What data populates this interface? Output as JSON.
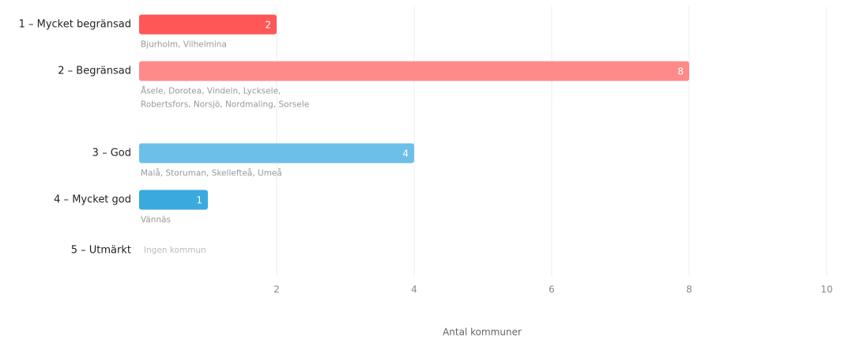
{
  "chart_data": {
    "type": "barh",
    "categories": [
      "1 – Mycket begränsad",
      "2 – Begränsad",
      "3 – God",
      "4 – Mycket god",
      "5 – Utmärkt"
    ],
    "values": [
      2,
      8,
      4,
      1,
      0
    ],
    "colors": [
      "#ff5757",
      "#ff8a8a",
      "#6cbfe8",
      "#3aa9dd",
      "#3aa9dd"
    ],
    "notes": [
      [
        "Bjurholm, Vilhelmina"
      ],
      [
        "Åsele, Dorotea, Vindeln, Lycksele,",
        "Robertsfors, Norsjö, Nordmaling, Sorsele"
      ],
      [
        "Malå, Storuman, Skellefteå, Umeå"
      ],
      [
        "Vännäs"
      ],
      [
        "Ingen kommun"
      ]
    ],
    "xlabel": "Antal kommuner",
    "xlim": [
      0,
      10
    ],
    "xticks": [
      2,
      4,
      6,
      8,
      10
    ],
    "grid": true
  }
}
